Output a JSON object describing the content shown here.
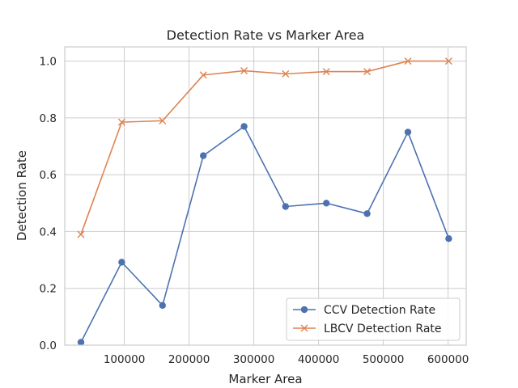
{
  "chart_data": {
    "type": "line",
    "title": "Detection Rate vs Marker Area",
    "xlabel": "Marker Area",
    "ylabel": "Detection Rate",
    "xlim": [
      8000,
      628000
    ],
    "ylim": [
      0.0,
      1.05
    ],
    "grid": true,
    "legend_position": "lower-right",
    "x_ticks": [
      100000,
      200000,
      300000,
      400000,
      500000,
      600000
    ],
    "y_ticks": [
      0.0,
      0.2,
      0.4,
      0.6,
      0.8,
      1.0
    ],
    "x": [
      33000,
      96000,
      159000,
      222000,
      285000,
      349000,
      412000,
      475000,
      538000,
      601000
    ],
    "series": [
      {
        "name": "CCV Detection Rate",
        "color": "#4c72b0",
        "marker": "circle",
        "values": [
          0.01,
          0.292,
          0.14,
          0.667,
          0.77,
          0.488,
          0.5,
          0.463,
          0.75,
          0.375
        ]
      },
      {
        "name": "LBCV Detection Rate",
        "color": "#dd8452",
        "marker": "x",
        "values": [
          0.39,
          0.785,
          0.79,
          0.951,
          0.966,
          0.955,
          0.963,
          0.963,
          1.0,
          1.0
        ]
      }
    ]
  }
}
